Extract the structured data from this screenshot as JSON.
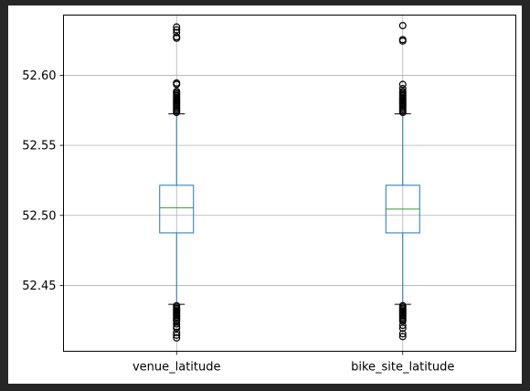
{
  "colors": {
    "background": "#262626",
    "figure": "#ffffff",
    "box": "#1f77b4",
    "median": "#2ca02c",
    "outlier": "#000000",
    "grid": "#b0b0b0",
    "axes": "#000000"
  },
  "chart_data": {
    "type": "box",
    "title": "",
    "xlabel": "",
    "ylabel": "",
    "categories": [
      "venue_latitude",
      "bike_site_latitude"
    ],
    "ylim": [
      52.403,
      52.643
    ],
    "yticks": [
      52.45,
      52.5,
      52.55,
      52.6
    ],
    "ytick_labels": [
      "52.45",
      "52.50",
      "52.55",
      "52.60"
    ],
    "grid": true,
    "series": [
      {
        "category": "venue_latitude",
        "whisker_low": 52.4365,
        "q1": 52.4875,
        "median": 52.5055,
        "q3": 52.5215,
        "whisker_high": 52.5725,
        "outliers_high": [
          52.5735,
          52.5745,
          52.5755,
          52.5765,
          52.5775,
          52.5785,
          52.5795,
          52.5805,
          52.5815,
          52.5825,
          52.5835,
          52.5845,
          52.5855,
          52.5865,
          52.5875,
          52.5885,
          52.5935,
          52.5945,
          52.6265,
          52.6275,
          52.6305,
          52.6325,
          52.6345
        ],
        "outliers_low": [
          52.4355,
          52.4345,
          52.4335,
          52.4325,
          52.4315,
          52.4305,
          52.4295,
          52.4285,
          52.4275,
          52.4265,
          52.4255,
          52.4245,
          52.4225,
          52.4205,
          52.4195,
          52.4165,
          52.4145,
          52.4125
        ]
      },
      {
        "category": "bike_site_latitude",
        "whisker_low": 52.4365,
        "q1": 52.4875,
        "median": 52.5045,
        "q3": 52.5215,
        "whisker_high": 52.5725,
        "outliers_high": [
          52.5735,
          52.5745,
          52.5755,
          52.5765,
          52.5775,
          52.5785,
          52.5795,
          52.5805,
          52.5815,
          52.5825,
          52.5835,
          52.5845,
          52.5855,
          52.5865,
          52.5875,
          52.5885,
          52.5905,
          52.5935,
          52.6245,
          52.6255,
          52.6355
        ],
        "outliers_low": [
          52.4355,
          52.4345,
          52.4335,
          52.4325,
          52.4315,
          52.4305,
          52.4295,
          52.4285,
          52.4275,
          52.4265,
          52.4255,
          52.4245,
          52.4215,
          52.4195,
          52.4155,
          52.4135
        ]
      }
    ]
  }
}
